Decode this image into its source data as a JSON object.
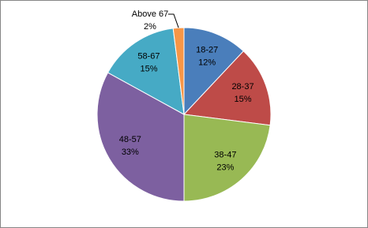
{
  "chart_data": {
    "type": "pie",
    "categories": [
      "18-27",
      "28-37",
      "38-47",
      "48-57",
      "58-67",
      "Above 67"
    ],
    "values": [
      12,
      15,
      23,
      33,
      15,
      2
    ],
    "value_labels": [
      "12%",
      "15%",
      "23%",
      "33%",
      "15%",
      "2%"
    ],
    "colors": [
      "#4a7ebb",
      "#be4b48",
      "#98b954",
      "#7d60a0",
      "#46aac5",
      "#f79646"
    ]
  }
}
